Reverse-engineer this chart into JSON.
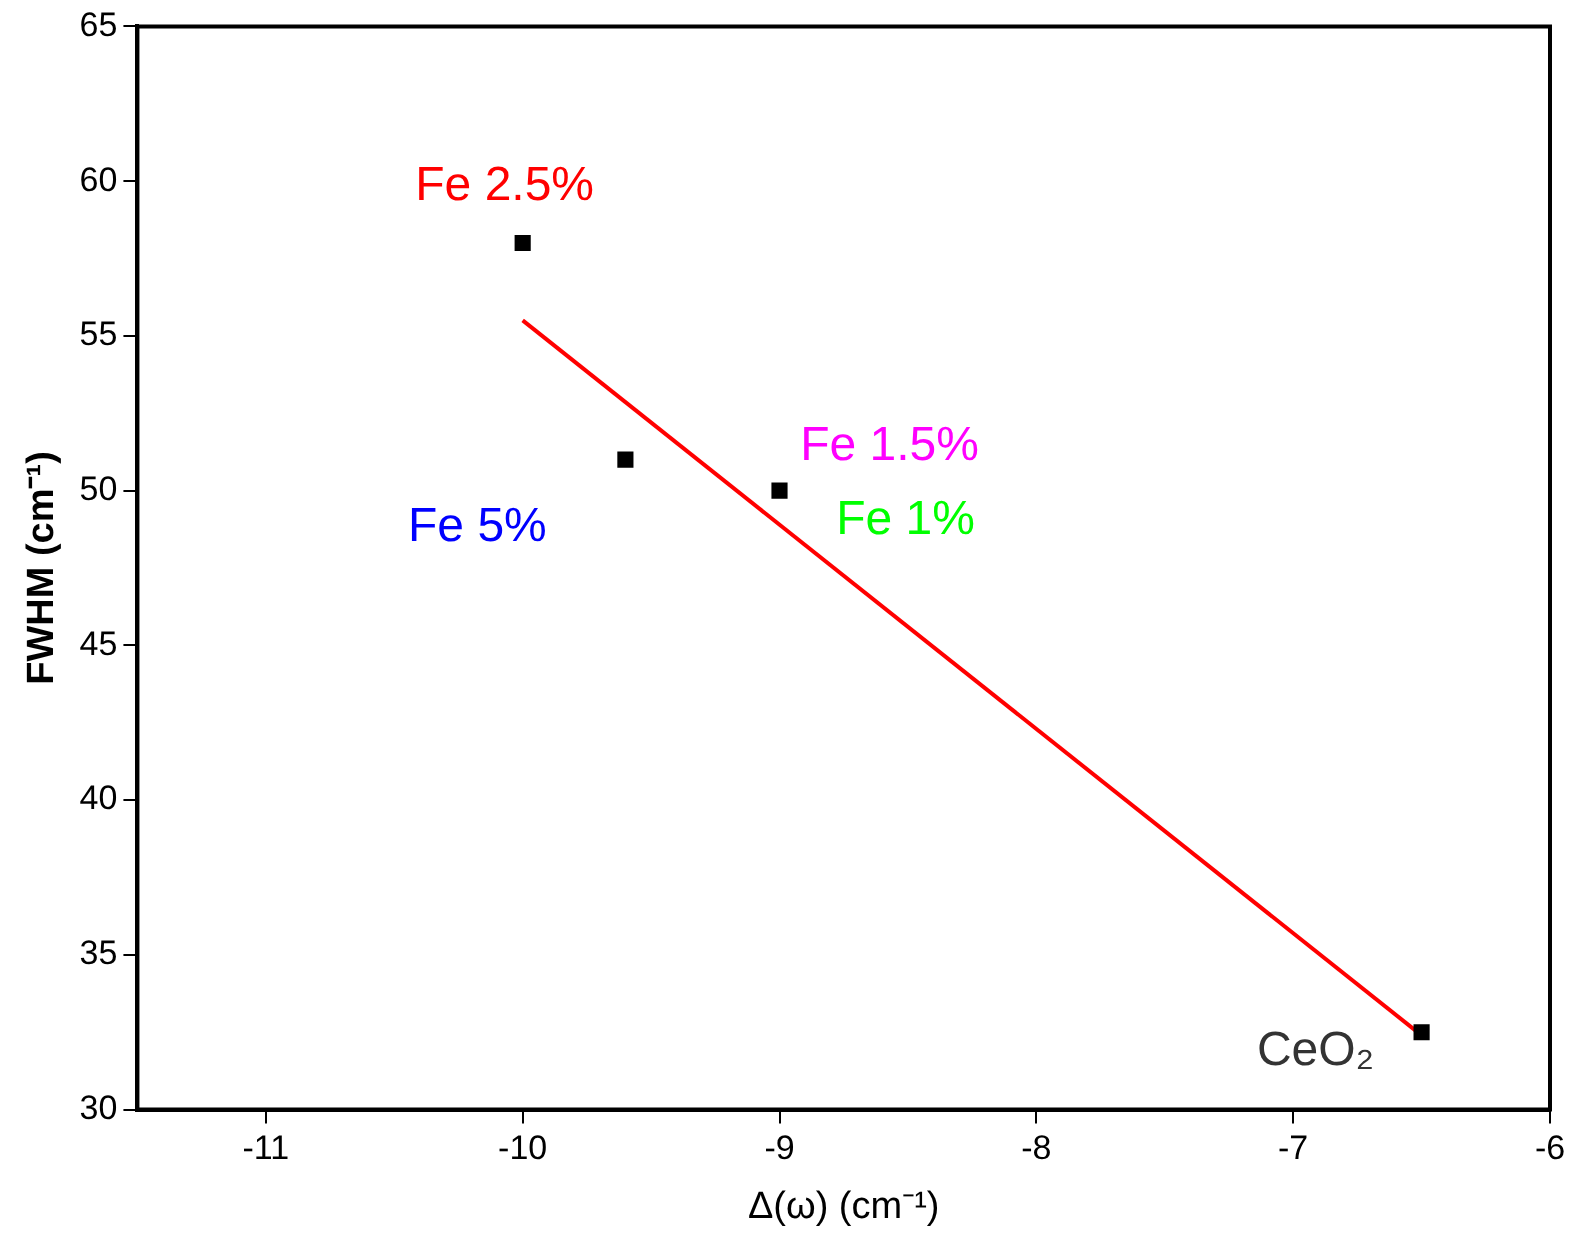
{
  "chart_data": {
    "type": "scatter",
    "xlabel": "Δ(ω) (cm⁻¹)",
    "ylabel": "FWHM (cm⁻¹)",
    "xlim": [
      -11.5,
      -6
    ],
    "xticks": [
      -11,
      -10,
      -9,
      -8,
      -7,
      -6
    ],
    "ylim": [
      30,
      65
    ],
    "yticks": [
      30,
      35,
      40,
      45,
      50,
      55,
      60,
      65
    ],
    "grid": false,
    "legend": false,
    "marker": "square",
    "series": [
      {
        "type": "scatter",
        "color": "#000000",
        "x": [
          -10,
          -9.6,
          -9,
          -6.5
        ],
        "values": [
          58,
          51,
          50,
          32.5
        ]
      },
      {
        "type": "line",
        "color": "#ff0000",
        "x": [
          -10,
          -6.5
        ],
        "values": [
          55.5,
          32.4
        ],
        "marker": "none"
      }
    ],
    "annotations": [
      {
        "text": "Fe 2.5%",
        "x": -10,
        "y": 58
      },
      {
        "text": "Fe 5%",
        "x": -9.6,
        "y": 51
      },
      {
        "text": "Fe 1.5%",
        "x": -9,
        "y": 50
      },
      {
        "text": "Fe 1%",
        "x": -9,
        "y": 50
      },
      {
        "text": "CeO₂",
        "x": -6.5,
        "y": 32.5
      }
    ]
  }
}
